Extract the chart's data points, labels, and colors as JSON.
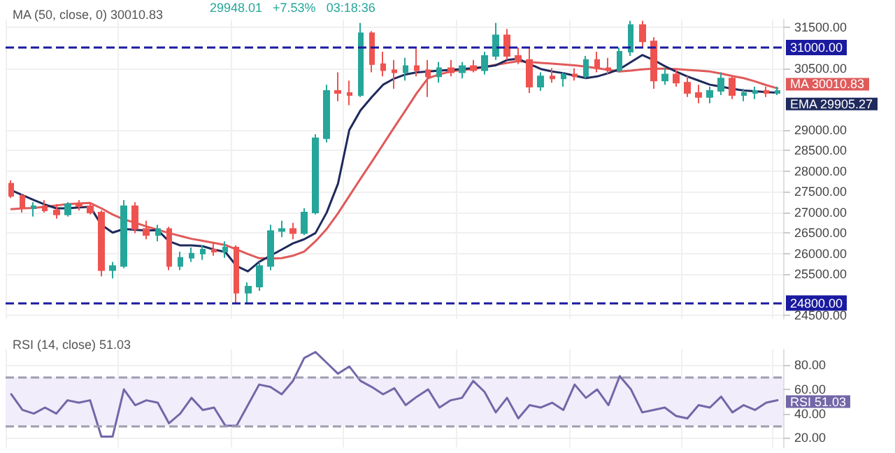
{
  "chart_data": [
    {
      "type": "candlestick",
      "title": "MA (50, close, 0) 30010.83",
      "annotations": [
        "29948.01",
        "+7.53%",
        "03:18:36"
      ],
      "categories": [
        null,
        null,
        null,
        null,
        null,
        null,
        null,
        null,
        null,
        null,
        null,
        null,
        null,
        null,
        null,
        null,
        null,
        null,
        null,
        null,
        null,
        null,
        null,
        null,
        null,
        null,
        null,
        null,
        null,
        null,
        null,
        null,
        null,
        null,
        null,
        null,
        null,
        null,
        null,
        null,
        null,
        null,
        null,
        null,
        null,
        null,
        null,
        null,
        null,
        null,
        null,
        null,
        null,
        null,
        null,
        null,
        null,
        null,
        null,
        null,
        null,
        null,
        null,
        null,
        null,
        null,
        null,
        null,
        null
      ],
      "series": [
        {
          "ohlc": [
            [
              27700,
              27780,
              27350,
              27400
            ],
            [
              27400,
              27450,
              27000,
              27100
            ],
            [
              27100,
              27250,
              26900,
              27150
            ],
            [
              27150,
              27300,
              27000,
              27050
            ],
            [
              27050,
              27200,
              26850,
              26950
            ],
            [
              26950,
              27250,
              26900,
              27200
            ],
            [
              27200,
              27300,
              27050,
              27150
            ],
            [
              27150,
              27250,
              26950,
              27000
            ],
            [
              27000,
              27050,
              25450,
              25600
            ],
            [
              25600,
              25800,
              25400,
              25700
            ],
            [
              25700,
              27300,
              25650,
              27150
            ],
            [
              27150,
              27250,
              26500,
              26600
            ],
            [
              26600,
              26800,
              26350,
              26450
            ],
            [
              26450,
              26700,
              26300,
              26600
            ],
            [
              26600,
              26650,
              25600,
              25700
            ],
            [
              25700,
              26050,
              25600,
              25900
            ],
            [
              25900,
              26150,
              25800,
              26000
            ],
            [
              26000,
              26200,
              25850,
              26100
            ],
            [
              26100,
              26250,
              25950,
              26050
            ],
            [
              26050,
              26300,
              25900,
              26150
            ],
            [
              26150,
              26200,
              24800,
              25050
            ],
            [
              25050,
              25300,
              24800,
              25200
            ],
            [
              25200,
              25800,
              25100,
              25700
            ],
            [
              25700,
              26700,
              25600,
              26550
            ],
            [
              26550,
              26800,
              26400,
              26600
            ],
            [
              26600,
              26750,
              26350,
              26500
            ],
            [
              26500,
              27100,
              26450,
              27000
            ],
            [
              27000,
              28900,
              26950,
              28800
            ],
            [
              28800,
              30100,
              28700,
              29950
            ],
            [
              29950,
              30400,
              29700,
              29900
            ],
            [
              29900,
              30200,
              29600,
              29850
            ],
            [
              29850,
              31600,
              29800,
              31350
            ],
            [
              31350,
              31400,
              30400,
              30600
            ],
            [
              30600,
              30900,
              30300,
              30450
            ],
            [
              30450,
              30700,
              30000,
              30400
            ],
            [
              30400,
              30750,
              30200,
              30550
            ],
            [
              30550,
              31000,
              30300,
              30450
            ],
            [
              30450,
              30700,
              29800,
              30300
            ],
            [
              30300,
              30650,
              30150,
              30500
            ],
            [
              30500,
              30700,
              30300,
              30400
            ],
            [
              30400,
              30650,
              30250,
              30550
            ],
            [
              30550,
              30700,
              30400,
              30450
            ],
            [
              30450,
              30900,
              30350,
              30800
            ],
            [
              30800,
              31600,
              30700,
              31300
            ],
            [
              31300,
              31450,
              30700,
              30800
            ],
            [
              30800,
              31000,
              30600,
              30700
            ],
            [
              30700,
              31000,
              29900,
              30050
            ],
            [
              30050,
              30400,
              29950,
              30300
            ],
            [
              30300,
              30500,
              30150,
              30250
            ],
            [
              30250,
              30400,
              30050,
              30350
            ],
            [
              30350,
              30500,
              30200,
              30300
            ],
            [
              30300,
              30800,
              30250,
              30700
            ],
            [
              30700,
              30900,
              30400,
              30500
            ],
            [
              30500,
              30750,
              30350,
              30450
            ],
            [
              30450,
              31000,
              30400,
              30900
            ],
            [
              30900,
              31650,
              30800,
              31550
            ],
            [
              31550,
              31650,
              31000,
              31150
            ],
            [
              31150,
              31250,
              30000,
              30200
            ],
            [
              30200,
              30500,
              30100,
              30350
            ],
            [
              30350,
              30450,
              30050,
              30150
            ],
            [
              30150,
              30300,
              29800,
              29900
            ],
            [
              29900,
              30100,
              29650,
              29800
            ],
            [
              29800,
              30050,
              29650,
              29950
            ],
            [
              29950,
              30400,
              29850,
              30250
            ],
            [
              30250,
              30300,
              29750,
              29850
            ],
            [
              29850,
              30000,
              29700,
              29900
            ],
            [
              29900,
              30050,
              29750,
              29950
            ],
            [
              29950,
              30050,
              29800,
              29900
            ],
            [
              29900,
              30050,
              29850,
              29948.01
            ]
          ],
          "colors": [
            "#ef5350",
            "#ef5350",
            "#26a69a",
            "#ef5350",
            "#ef5350",
            "#26a69a",
            "#ef5350",
            "#ef5350",
            "#ef5350",
            "#26a69a",
            "#26a69a",
            "#ef5350",
            "#ef5350",
            "#26a69a",
            "#ef5350",
            "#26a69a",
            "#26a69a",
            "#26a69a",
            "#ef5350",
            "#26a69a",
            "#ef5350",
            "#26a69a",
            "#26a69a",
            "#26a69a",
            "#26a69a",
            "#ef5350",
            "#26a69a",
            "#26a69a",
            "#26a69a",
            "#ef5350",
            "#ef5350",
            "#26a69a",
            "#ef5350",
            "#ef5350",
            "#ef5350",
            "#26a69a",
            "#ef5350",
            "#ef5350",
            "#26a69a",
            "#ef5350",
            "#26a69a",
            "#ef5350",
            "#26a69a",
            "#26a69a",
            "#ef5350",
            "#ef5350",
            "#ef5350",
            "#26a69a",
            "#ef5350",
            "#26a69a",
            "#ef5350",
            "#26a69a",
            "#ef5350",
            "#ef5350",
            "#26a69a",
            "#26a69a",
            "#ef5350",
            "#ef5350",
            "#26a69a",
            "#ef5350",
            "#ef5350",
            "#ef5350",
            "#26a69a",
            "#26a69a",
            "#ef5350",
            "#26a69a",
            "#26a69a",
            "#ef5350",
            "#26a69a"
          ]
        },
        {
          "type": "line",
          "name": "MA",
          "color": "#e05a5a",
          "values": [
            27080,
            27100,
            27110,
            27140,
            27170,
            27200,
            27220,
            27230,
            27100,
            26950,
            26830,
            26750,
            26660,
            26580,
            26500,
            26430,
            26360,
            26310,
            26260,
            26210,
            26100,
            25990,
            25890,
            25880,
            25890,
            25950,
            26050,
            26300,
            26600,
            26980,
            27400,
            27820,
            28230,
            28650,
            29070,
            29480,
            29900,
            30260,
            30350,
            30420,
            30460,
            30480,
            30530,
            30580,
            30630,
            30670,
            30650,
            30630,
            30610,
            30590,
            30570,
            30540,
            30500,
            30460,
            30420,
            30440,
            30470,
            30490,
            30490,
            30480,
            30460,
            30440,
            30420,
            30370,
            30310,
            30260,
            30180,
            30090,
            30010.83
          ],
          "value_labels": [
            null,
            null,
            null,
            null,
            null,
            null,
            null,
            null,
            null,
            null,
            null,
            null,
            null,
            null,
            null,
            null,
            null,
            null,
            null,
            null,
            null,
            null,
            null,
            null,
            null,
            null,
            null,
            null,
            null,
            null,
            null,
            null,
            null,
            null,
            null,
            null,
            null,
            null,
            null,
            null,
            null,
            null,
            null,
            null,
            null,
            null,
            null,
            null,
            null,
            null,
            null,
            null,
            null,
            null,
            null,
            null,
            null,
            null,
            null,
            null,
            null,
            null,
            null,
            null,
            null,
            null,
            null,
            null,
            "30010.83"
          ]
        },
        {
          "type": "line",
          "name": "EMA",
          "color": "#1f2a5c",
          "values": [
            27540,
            27420,
            27300,
            27190,
            27100,
            27100,
            27120,
            27140,
            26700,
            26510,
            26600,
            26580,
            26560,
            26570,
            26300,
            26200,
            26200,
            26180,
            26100,
            26040,
            25700,
            25570,
            25800,
            25950,
            26100,
            26250,
            26350,
            26500,
            27000,
            27700,
            29000,
            29480,
            29800,
            30100,
            30250,
            30350,
            30400,
            30420,
            30440,
            30460,
            30480,
            30500,
            30530,
            30570,
            30700,
            30730,
            30600,
            30480,
            30420,
            30380,
            30320,
            30260,
            30300,
            30380,
            30480,
            30650,
            30820,
            30700,
            30550,
            30420,
            30300,
            30200,
            30100,
            30050,
            30000,
            29960,
            29940,
            29920,
            29905.27
          ],
          "value_labels": [
            null,
            null,
            null,
            null,
            null,
            null,
            null,
            null,
            null,
            null,
            null,
            null,
            null,
            null,
            null,
            null,
            null,
            null,
            null,
            null,
            null,
            null,
            null,
            null,
            null,
            null,
            null,
            null,
            null,
            null,
            null,
            null,
            null,
            null,
            null,
            null,
            null,
            null,
            null,
            null,
            null,
            null,
            null,
            null,
            null,
            null,
            null,
            null,
            null,
            null,
            null,
            null,
            null,
            null,
            null,
            null,
            null,
            null,
            null,
            null,
            null,
            null,
            null,
            null,
            null,
            null,
            null,
            null,
            "29905.27"
          ]
        }
      ],
      "ylim": [
        24420,
        31680
      ],
      "yticks": [
        {
          "value": 24500,
          "label": "24500.00"
        },
        {
          "value": 25500,
          "label": "25500.00"
        },
        {
          "value": 26000,
          "label": "26000.00"
        },
        {
          "value": 26500,
          "label": "26500.00"
        },
        {
          "value": 27000,
          "label": "27000.00"
        },
        {
          "value": 27500,
          "label": "27500.00"
        },
        {
          "value": 28000,
          "label": "28000.00"
        },
        {
          "value": 28500,
          "label": "28500.00"
        },
        {
          "value": 29000,
          "label": "29000.00"
        },
        {
          "value": 30500,
          "label": "30500.00"
        },
        {
          "value": 31500,
          "label": "31500.00"
        }
      ],
      "ref_lines": [
        {
          "axis": "y",
          "value": 31000,
          "label": "31000.00",
          "color": "#1a1aa0",
          "line_style": "dashed"
        },
        {
          "axis": "y",
          "value": 24800,
          "label": "24800.00",
          "color": "#1a1aa0",
          "line_style": "dashed"
        }
      ],
      "grid": true,
      "tick_labels": "y"
    },
    {
      "type": "line",
      "title": "RSI (14, close) 51.03",
      "categories": [
        null,
        null,
        null,
        null,
        null,
        null,
        null,
        null,
        null,
        null,
        null,
        null,
        null,
        null,
        null,
        null,
        null,
        null,
        null,
        null,
        null,
        null,
        null,
        null,
        null,
        null,
        null,
        null,
        null,
        null,
        null,
        null,
        null,
        null,
        null,
        null,
        null,
        null,
        null,
        null,
        null,
        null,
        null,
        null,
        null,
        null,
        null,
        null,
        null,
        null,
        null,
        null,
        null,
        null,
        null,
        null,
        null,
        null,
        null,
        null,
        null,
        null,
        null,
        null,
        null,
        null,
        null,
        null,
        null
      ],
      "series": [
        {
          "name": "RSI",
          "color": "#7367a8",
          "values": [
            56,
            43,
            40,
            45,
            40,
            51,
            49,
            51,
            21,
            21,
            60,
            47,
            51,
            49,
            32,
            40,
            53,
            43,
            45,
            30,
            30,
            47,
            64,
            62,
            56,
            67,
            86,
            91,
            82,
            73,
            79,
            67,
            62,
            56,
            61,
            47,
            54,
            60,
            45,
            51,
            53,
            67,
            58,
            41,
            53,
            36,
            47,
            45,
            49,
            43,
            64,
            53,
            60,
            47,
            71,
            60,
            41,
            43,
            45,
            38,
            36,
            47,
            45,
            54,
            41,
            47,
            43,
            49,
            51.03
          ],
          "value_labels": [
            null,
            null,
            null,
            null,
            null,
            null,
            null,
            null,
            null,
            null,
            null,
            null,
            null,
            null,
            null,
            null,
            null,
            null,
            null,
            null,
            null,
            null,
            null,
            null,
            null,
            null,
            null,
            null,
            null,
            null,
            null,
            null,
            null,
            null,
            null,
            null,
            null,
            null,
            null,
            null,
            null,
            null,
            null,
            null,
            null,
            null,
            null,
            null,
            null,
            null,
            null,
            null,
            null,
            null,
            null,
            null,
            null,
            null,
            null,
            null,
            null,
            null,
            null,
            null,
            null,
            null,
            null,
            null,
            "51.03"
          ]
        }
      ],
      "ylim": [
        12,
        93
      ],
      "yticks": [
        {
          "value": 20,
          "label": "20.00"
        },
        {
          "value": 40,
          "label": "40.00"
        },
        {
          "value": 60,
          "label": "60.00"
        },
        {
          "value": 80,
          "label": "80.00"
        }
      ],
      "ref_lines": [
        {
          "axis": "y",
          "value": 70,
          "color": "#9e9eb0",
          "line_style": "dashed"
        },
        {
          "axis": "y",
          "value": 30,
          "color": "#9e9eb0",
          "line_style": "dashed"
        }
      ],
      "bands": [
        {
          "axis": "y",
          "from": 30,
          "to": 70,
          "color": "#f1edfa"
        }
      ],
      "grid": true,
      "tick_labels": "y"
    }
  ]
}
